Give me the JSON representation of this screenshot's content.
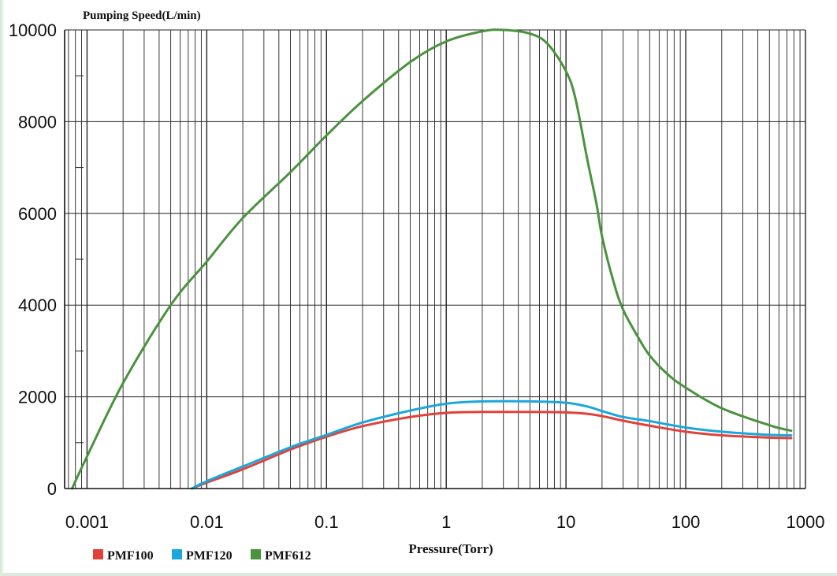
{
  "chart_data": {
    "type": "line",
    "ylabel": "Pumping Speed(L/min)",
    "xlabel": "Pressure(Torr)",
    "x_scale": "log",
    "xlim": [
      0.00065,
      1000
    ],
    "ylim": [
      0,
      10000
    ],
    "x_ticks": [
      0.001,
      0.01,
      0.1,
      1,
      10,
      100,
      1000
    ],
    "x_tick_labels": [
      "0.001",
      "0.01",
      "0.1",
      "1",
      "10",
      "100",
      "1000"
    ],
    "y_ticks": [
      0,
      2000,
      4000,
      6000,
      8000,
      10000
    ],
    "y_tick_labels": [
      "0",
      "2000",
      "4000",
      "6000",
      "8000",
      "10000"
    ],
    "grid": true,
    "legend_position": "bottom-left",
    "series": [
      {
        "name": "PMF100",
        "color": "#e2413a",
        "x": [
          0.0075,
          0.01,
          0.02,
          0.05,
          0.1,
          0.2,
          0.5,
          1,
          2,
          5,
          10,
          15,
          20,
          30,
          50,
          100,
          200,
          500,
          760
        ],
        "y": [
          0,
          130,
          420,
          850,
          1130,
          1360,
          1560,
          1650,
          1670,
          1670,
          1660,
          1630,
          1580,
          1480,
          1370,
          1240,
          1160,
          1110,
          1100
        ]
      },
      {
        "name": "PMF120",
        "color": "#1ba6dc",
        "x": [
          0.0075,
          0.01,
          0.02,
          0.05,
          0.1,
          0.2,
          0.5,
          1,
          2,
          5,
          10,
          15,
          20,
          30,
          50,
          100,
          200,
          500,
          760
        ],
        "y": [
          0,
          160,
          480,
          900,
          1170,
          1440,
          1700,
          1850,
          1900,
          1900,
          1870,
          1790,
          1690,
          1560,
          1470,
          1330,
          1240,
          1170,
          1160
        ]
      },
      {
        "name": "PMF612",
        "color": "#4a923e",
        "x": [
          0.00075,
          0.001,
          0.002,
          0.005,
          0.01,
          0.02,
          0.05,
          0.1,
          0.2,
          0.5,
          1,
          2,
          3,
          5,
          7,
          10,
          12,
          15,
          18,
          20,
          25,
          30,
          40,
          50,
          70,
          100,
          200,
          500,
          760
        ],
        "y": [
          0,
          700,
          2300,
          4000,
          4950,
          5900,
          6900,
          7700,
          8450,
          9300,
          9750,
          9970,
          10000,
          9920,
          9700,
          9100,
          8500,
          7200,
          6200,
          5500,
          4500,
          3900,
          3300,
          2900,
          2500,
          2200,
          1750,
          1380,
          1260
        ]
      }
    ]
  }
}
